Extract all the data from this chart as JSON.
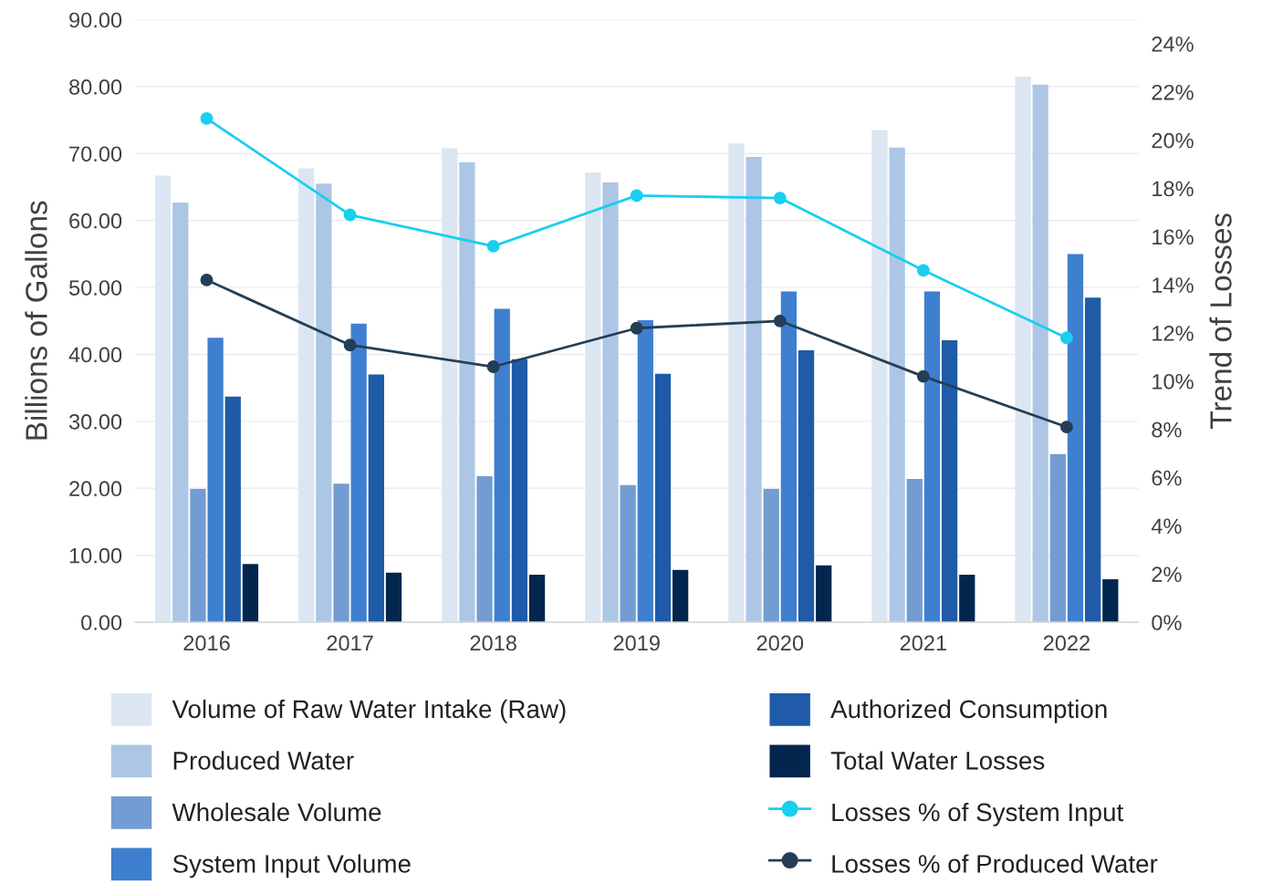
{
  "chart_data": {
    "type": "bar",
    "ylabel": "Billions of Gallons",
    "y2label": "Trend of Losses",
    "categories": [
      "2016",
      "2017",
      "2018",
      "2019",
      "2020",
      "2021",
      "2022"
    ],
    "series": [
      {
        "name": "Volume of Raw Water Intake (Raw)",
        "color": "#dce6f2",
        "values": [
          66.7,
          67.8,
          70.8,
          67.2,
          71.5,
          73.5,
          81.5
        ]
      },
      {
        "name": "Produced Water",
        "color": "#adc6e5",
        "values": [
          62.7,
          65.5,
          68.7,
          65.7,
          69.5,
          70.9,
          80.3
        ]
      },
      {
        "name": "Wholesale Volume",
        "color": "#739cd2",
        "values": [
          19.9,
          20.7,
          21.8,
          20.5,
          19.9,
          21.4,
          25.1
        ]
      },
      {
        "name": "System Input Volume",
        "color": "#3f7fcf",
        "values": [
          42.5,
          44.6,
          46.8,
          45.1,
          49.4,
          49.4,
          55.0
        ]
      },
      {
        "name": "Authorized Consumption",
        "color": "#1f5ba8",
        "values": [
          33.7,
          37.0,
          39.3,
          37.1,
          40.6,
          42.1,
          48.5
        ]
      },
      {
        "name": "Total Water Losses",
        "color": "#03264f",
        "values": [
          8.7,
          7.4,
          7.1,
          7.8,
          8.5,
          7.1,
          6.4
        ]
      },
      {
        "name": "Losses % of System Input",
        "type": "line",
        "axis": "y2",
        "marker": "circle",
        "color": "#18cff0",
        "values": [
          20.9,
          16.9,
          15.6,
          17.7,
          17.6,
          14.6,
          11.8
        ]
      },
      {
        "name": "Losses % of Produced Water",
        "type": "line",
        "axis": "y2",
        "marker": "circle",
        "color": "#243f55",
        "values": [
          14.2,
          11.5,
          10.6,
          12.2,
          12.5,
          10.2,
          8.1
        ]
      }
    ],
    "ylim": [
      0,
      90
    ],
    "yticks": [
      {
        "value": 0,
        "label": "0.00"
      },
      {
        "value": 10,
        "label": "10.00"
      },
      {
        "value": 20,
        "label": "20.00"
      },
      {
        "value": 30,
        "label": "30.00"
      },
      {
        "value": 40,
        "label": "40.00"
      },
      {
        "value": 50,
        "label": "50.00"
      },
      {
        "value": 60,
        "label": "60.00"
      },
      {
        "value": 70,
        "label": "70.00"
      },
      {
        "value": 80,
        "label": "80.00"
      },
      {
        "value": 90,
        "label": "90.00"
      }
    ],
    "y2lim": [
      0,
      25
    ],
    "y2ticks": [
      {
        "value": 0,
        "label": "0%"
      },
      {
        "value": 2,
        "label": "2%"
      },
      {
        "value": 4,
        "label": "4%"
      },
      {
        "value": 6,
        "label": "6%"
      },
      {
        "value": 8,
        "label": "8%"
      },
      {
        "value": 10,
        "label": "10%"
      },
      {
        "value": 12,
        "label": "12%"
      },
      {
        "value": 14,
        "label": "14%"
      },
      {
        "value": 16,
        "label": "16%"
      },
      {
        "value": 18,
        "label": "18%"
      },
      {
        "value": 20,
        "label": "20%"
      },
      {
        "value": 22,
        "label": "22%"
      },
      {
        "value": 24,
        "label": "24%"
      }
    ],
    "grid": "y",
    "legend": "bottom"
  }
}
